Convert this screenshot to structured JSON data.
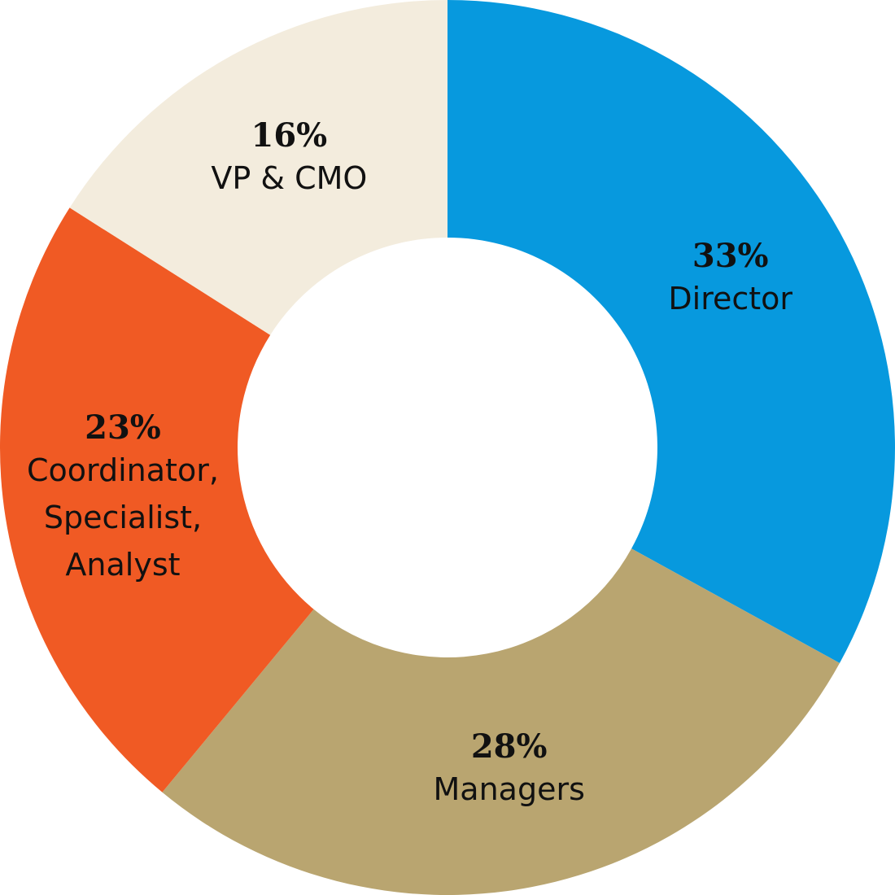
{
  "chart_data": {
    "type": "donut",
    "categories": [
      "Director",
      "Managers",
      "Coordinator, Specialist, Analyst",
      "VP & CMO"
    ],
    "values": [
      33,
      28,
      23,
      16
    ],
    "value_labels": [
      "33%",
      "28%",
      "23%",
      "16%"
    ],
    "colors": [
      "#0799de",
      "#b9a570",
      "#f05a24",
      "#f3ecdd"
    ]
  }
}
